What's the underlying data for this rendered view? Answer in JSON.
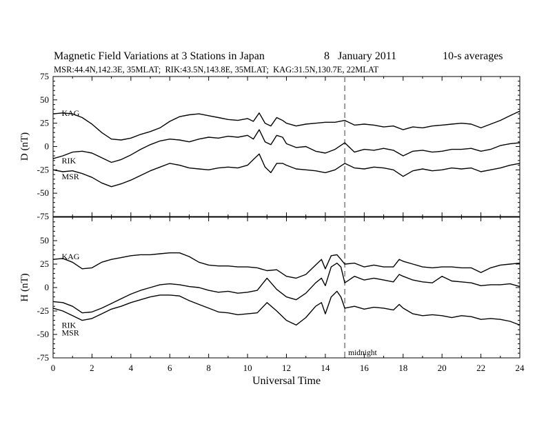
{
  "header": {
    "title": "Magnetic Field Variations at 3 Stations in Japan",
    "date": "8   January 2011",
    "averaging": "10-s averages",
    "stations_line": "MSR:44.4N,142.3E, 35MLAT;  RIK:43.5N,143.8E, 35MLAT;  KAG:31.5N,130.7E, 22MLAT"
  },
  "chart_data": [
    {
      "type": "line",
      "panel": "D",
      "ylabel": "D (nT)",
      "xlim": [
        0,
        24
      ],
      "ylim": [
        -75,
        75
      ],
      "yticks": [
        75,
        50,
        25,
        0,
        -25,
        -50,
        -75
      ],
      "grid": false,
      "annotation": {
        "text": "midnight",
        "x": 15
      },
      "series": [
        {
          "name": "KAG",
          "label_at": [
            0.3,
            36
          ],
          "x": [
            0,
            0.5,
            1,
            1.5,
            2,
            2.5,
            3,
            3.5,
            4,
            4.5,
            5,
            5.5,
            6,
            6.5,
            7,
            7.5,
            8,
            8.5,
            9,
            9.5,
            10,
            10.3,
            10.6,
            10.9,
            11.2,
            11.5,
            11.8,
            12,
            12.5,
            13,
            13.5,
            14,
            14.5,
            15,
            15.5,
            16,
            16.5,
            17,
            17.5,
            18,
            18.5,
            19,
            19.5,
            20,
            20.5,
            21,
            21.5,
            22,
            22.5,
            23,
            23.5,
            24
          ],
          "y": [
            35,
            36,
            35,
            31,
            24,
            15,
            8,
            7,
            9,
            13,
            16,
            20,
            27,
            32,
            34,
            35,
            33,
            31,
            29,
            28,
            30,
            27,
            36,
            25,
            22,
            31,
            28,
            25,
            22,
            24,
            25,
            26,
            26,
            28,
            23,
            24,
            23,
            21,
            22,
            18,
            21,
            20,
            22,
            23,
            24,
            25,
            24,
            20,
            24,
            28,
            33,
            38
          ]
        },
        {
          "name": "RIK",
          "label_at": [
            0.3,
            -15
          ],
          "x": [
            0,
            0.5,
            1,
            1.5,
            2,
            2.5,
            3,
            3.5,
            4,
            4.5,
            5,
            5.5,
            6,
            6.5,
            7,
            7.5,
            8,
            8.5,
            9,
            9.5,
            10,
            10.3,
            10.6,
            10.9,
            11.2,
            11.5,
            11.8,
            12,
            12.5,
            13,
            13.5,
            14,
            14.5,
            15,
            15.5,
            16,
            16.5,
            17,
            17.5,
            18,
            18.5,
            19,
            19.5,
            20,
            20.5,
            21,
            21.5,
            22,
            22.5,
            23,
            23.5,
            24
          ],
          "y": [
            -13,
            -10,
            -6,
            -5,
            -7,
            -12,
            -17,
            -14,
            -9,
            -3,
            2,
            6,
            8,
            7,
            5,
            8,
            10,
            9,
            11,
            10,
            12,
            8,
            18,
            5,
            2,
            12,
            10,
            3,
            -1,
            0,
            -5,
            -7,
            -3,
            4,
            -6,
            -3,
            -4,
            -2,
            -4,
            -10,
            -5,
            -4,
            -6,
            -5,
            -3,
            -3,
            -2,
            -5,
            -3,
            1,
            3,
            4
          ]
        },
        {
          "name": "MSR",
          "label_at": [
            0.3,
            -32
          ],
          "x": [
            0,
            0.5,
            1,
            1.5,
            2,
            2.5,
            3,
            3.5,
            4,
            4.5,
            5,
            5.5,
            6,
            6.5,
            7,
            7.5,
            8,
            8.5,
            9,
            9.5,
            10,
            10.3,
            10.6,
            10.9,
            11.2,
            11.5,
            11.8,
            12,
            12.5,
            13,
            13.5,
            14,
            14.5,
            15,
            15.5,
            16,
            16.5,
            17,
            17.5,
            18,
            18.5,
            19,
            19.5,
            20,
            20.5,
            21,
            21.5,
            22,
            22.5,
            23,
            23.5,
            24
          ],
          "y": [
            -25,
            -27,
            -26,
            -29,
            -33,
            -39,
            -43,
            -40,
            -36,
            -31,
            -26,
            -22,
            -18,
            -20,
            -23,
            -24,
            -25,
            -23,
            -22,
            -23,
            -20,
            -14,
            -8,
            -22,
            -28,
            -18,
            -18,
            -20,
            -24,
            -25,
            -26,
            -28,
            -25,
            -18,
            -23,
            -24,
            -22,
            -23,
            -25,
            -32,
            -26,
            -24,
            -26,
            -25,
            -23,
            -24,
            -23,
            -27,
            -25,
            -23,
            -20,
            -18
          ]
        }
      ]
    },
    {
      "type": "line",
      "panel": "H",
      "xlabel": "Universal Time",
      "ylabel": "H (nT)",
      "xlim": [
        0,
        24
      ],
      "ylim": [
        -75,
        75
      ],
      "xticks": [
        0,
        2,
        4,
        6,
        8,
        10,
        12,
        14,
        16,
        18,
        20,
        22,
        24
      ],
      "yticks": [
        50,
        25,
        0,
        -25,
        -50,
        -75
      ],
      "grid": false,
      "annotation": {
        "text": "midnight",
        "x": 15
      },
      "series": [
        {
          "name": "KAG",
          "label_at": [
            0.3,
            33
          ],
          "x": [
            0,
            0.5,
            1,
            1.5,
            2,
            2.5,
            3,
            3.5,
            4,
            4.5,
            5,
            5.5,
            6,
            6.5,
            7,
            7.5,
            8,
            8.5,
            9,
            9.5,
            10,
            10.5,
            11,
            11.5,
            12,
            12.5,
            13,
            13.5,
            13.8,
            14,
            14.3,
            14.6,
            14.8,
            15,
            15.5,
            16,
            16.5,
            17,
            17.5,
            17.8,
            18,
            18.5,
            19,
            19.5,
            20,
            20.5,
            21,
            21.5,
            22,
            22.5,
            23,
            23.5,
            24
          ],
          "y": [
            30,
            31,
            27,
            20,
            21,
            27,
            30,
            32,
            34,
            35,
            35,
            36,
            37,
            37,
            33,
            27,
            24,
            23,
            23,
            22,
            22,
            21,
            18,
            19,
            12,
            10,
            14,
            24,
            30,
            20,
            34,
            35,
            30,
            25,
            26,
            22,
            24,
            22,
            22,
            30,
            28,
            25,
            22,
            21,
            22,
            22,
            21,
            21,
            16,
            21,
            24,
            25,
            26
          ]
        },
        {
          "name": "RIK",
          "label_at": [
            0.3,
            -40
          ],
          "x": [
            0,
            0.5,
            1,
            1.5,
            2,
            2.5,
            3,
            3.5,
            4,
            4.5,
            5,
            5.5,
            6,
            6.5,
            7,
            7.5,
            8,
            8.5,
            9,
            9.5,
            10,
            10.5,
            11,
            11.5,
            12,
            12.5,
            13,
            13.5,
            13.8,
            14,
            14.3,
            14.6,
            14.8,
            15,
            15.5,
            16,
            16.5,
            17,
            17.5,
            17.8,
            18,
            18.5,
            19,
            19.5,
            20,
            20.5,
            21,
            21.5,
            22,
            22.5,
            23,
            23.5,
            24
          ],
          "y": [
            -15,
            -16,
            -20,
            -27,
            -26,
            -22,
            -17,
            -12,
            -7,
            -3,
            0,
            3,
            4,
            3,
            1,
            0,
            -3,
            -5,
            -4,
            -6,
            -5,
            -3,
            10,
            -2,
            -10,
            -13,
            -6,
            5,
            10,
            2,
            22,
            26,
            22,
            5,
            12,
            8,
            10,
            8,
            6,
            14,
            12,
            8,
            6,
            5,
            12,
            7,
            6,
            5,
            2,
            3,
            3,
            4,
            1
          ]
        },
        {
          "name": "MSR",
          "label_at": [
            0.3,
            -48
          ],
          "x": [
            0,
            0.5,
            1,
            1.5,
            2,
            2.5,
            3,
            3.5,
            4,
            4.5,
            5,
            5.5,
            6,
            6.5,
            7,
            7.5,
            8,
            8.5,
            9,
            9.5,
            10,
            10.5,
            11,
            11.5,
            12,
            12.5,
            13,
            13.5,
            13.8,
            14,
            14.3,
            14.6,
            14.8,
            15,
            15.5,
            16,
            16.5,
            17,
            17.5,
            17.8,
            18,
            18.5,
            19,
            19.5,
            20,
            20.5,
            21,
            21.5,
            22,
            22.5,
            23,
            23.5,
            24
          ],
          "y": [
            -22,
            -25,
            -30,
            -35,
            -33,
            -28,
            -23,
            -20,
            -16,
            -13,
            -10,
            -8,
            -8,
            -9,
            -14,
            -18,
            -22,
            -26,
            -27,
            -29,
            -28,
            -27,
            -16,
            -25,
            -35,
            -40,
            -32,
            -20,
            -16,
            -28,
            -10,
            -4,
            -10,
            -22,
            -20,
            -23,
            -21,
            -22,
            -24,
            -18,
            -22,
            -28,
            -30,
            -29,
            -30,
            -32,
            -30,
            -31,
            -34,
            -33,
            -34,
            -36,
            -40
          ]
        }
      ]
    }
  ]
}
